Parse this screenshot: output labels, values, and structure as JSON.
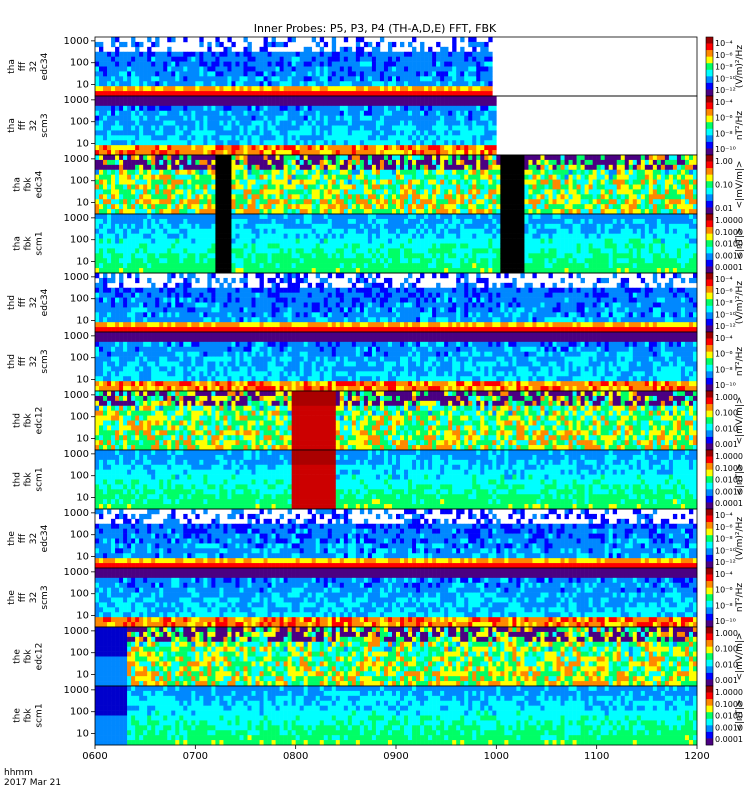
{
  "title": "Inner Probes: P5, P3, P4 (TH-A,D,E) FFT, FBK",
  "footer": {
    "time_label": "hhmm",
    "date_label": "2017 Mar 21"
  },
  "chart_data": {
    "type": "heatmap",
    "title": "Inner Probes: P5, P3, P4 (TH-A,D,E) FFT, FBK",
    "xlabel": "hhmm",
    "x_ticks": [
      "0600",
      "0700",
      "0800",
      "0900",
      "1000",
      "1100",
      "1200"
    ],
    "x_range_hours": [
      6,
      12
    ],
    "y_ticks": [
      "10",
      "100",
      "1000"
    ],
    "ylim_hz": [
      3,
      1500
    ],
    "panels": [
      {
        "probe": "tha",
        "ylabel": [
          "tha",
          "fff",
          "32",
          "edc34"
        ],
        "colorbar_label": "(V/m)²/Hz",
        "colorbar_ticks": [
          "10⁻⁴",
          "10⁻⁶",
          "10⁻⁸",
          "10⁻¹⁰",
          "10⁻¹²"
        ],
        "kind": "fft",
        "data_end_hour": 9.95
      },
      {
        "probe": "tha",
        "ylabel": [
          "tha",
          "fff",
          "32",
          "scm3"
        ],
        "colorbar_label": "nT²/Hz",
        "colorbar_ticks": [
          "10⁻⁴",
          "10⁻⁶",
          "10⁻⁸",
          "10⁻¹⁰"
        ],
        "kind": "fft_scm",
        "data_end_hour": 10.0
      },
      {
        "probe": "tha",
        "ylabel": [
          "tha",
          "fbk",
          "edc34"
        ],
        "colorbar_label": "<|mV/m|>",
        "colorbar_ticks": [
          "1.00",
          "0.10",
          "0.01"
        ],
        "kind": "fbk_e"
      },
      {
        "probe": "tha",
        "ylabel": [
          "tha",
          "fbk",
          "scm1"
        ],
        "colorbar_label": "<|nT|>",
        "colorbar_ticks": [
          "1.0000",
          "0.1000",
          "0.0100",
          "0.0010",
          "0.0001"
        ],
        "kind": "fbk_b"
      },
      {
        "probe": "thd",
        "ylabel": [
          "thd",
          "fff",
          "32",
          "edc34"
        ],
        "colorbar_label": "(V/m)²/Hz",
        "colorbar_ticks": [
          "10⁻⁴",
          "10⁻⁶",
          "10⁻⁸",
          "10⁻¹⁰",
          "10⁻¹²"
        ],
        "kind": "fft"
      },
      {
        "probe": "thd",
        "ylabel": [
          "thd",
          "fff",
          "32",
          "scm3"
        ],
        "colorbar_label": "nT²/Hz",
        "colorbar_ticks": [
          "10⁻⁴",
          "10⁻⁶",
          "10⁻⁸",
          "10⁻¹⁰"
        ],
        "kind": "fft_scm"
      },
      {
        "probe": "thd",
        "ylabel": [
          "thd",
          "fbk",
          "edc12"
        ],
        "colorbar_label": "<|mV/m|>",
        "colorbar_ticks": [
          "1.000",
          "0.100",
          "0.010",
          "0.001"
        ],
        "kind": "fbk_e"
      },
      {
        "probe": "thd",
        "ylabel": [
          "thd",
          "fbk",
          "scm1"
        ],
        "colorbar_label": "<|nT|>",
        "colorbar_ticks": [
          "1.0000",
          "0.1000",
          "0.0100",
          "0.0010",
          "0.0001"
        ],
        "kind": "fbk_b"
      },
      {
        "probe": "the",
        "ylabel": [
          "the",
          "fff",
          "32",
          "edc34"
        ],
        "colorbar_label": "(V/m)²/Hz",
        "colorbar_ticks": [
          "10⁻⁴",
          "10⁻⁶",
          "10⁻⁸",
          "10⁻¹⁰",
          "10⁻¹²"
        ],
        "kind": "fft"
      },
      {
        "probe": "the",
        "ylabel": [
          "the",
          "fff",
          "32",
          "scm3"
        ],
        "colorbar_label": "nT²/Hz",
        "colorbar_ticks": [
          "10⁻⁴",
          "10⁻⁶",
          "10⁻⁸",
          "10⁻¹⁰"
        ],
        "kind": "fft_scm"
      },
      {
        "probe": "the",
        "ylabel": [
          "the",
          "fbk",
          "edc12"
        ],
        "colorbar_label": "<|mV/m|>",
        "colorbar_ticks": [
          "1.000",
          "0.100",
          "0.010",
          "0.001"
        ],
        "kind": "fbk_e",
        "data_start_hour": 6.33
      },
      {
        "probe": "the",
        "ylabel": [
          "the",
          "fbk",
          "scm1"
        ],
        "colorbar_label": "<|nT|>",
        "colorbar_ticks": [
          "1.0000",
          "0.1000",
          "0.0100",
          "0.0010",
          "0.0001"
        ],
        "kind": "fbk_b",
        "data_start_hour": 6.33
      }
    ],
    "colormap": [
      "#4b0082",
      "#0000ff",
      "#0088ff",
      "#00ffff",
      "#00ff66",
      "#ffff00",
      "#ff8800",
      "#ff0000",
      "#990000"
    ]
  }
}
